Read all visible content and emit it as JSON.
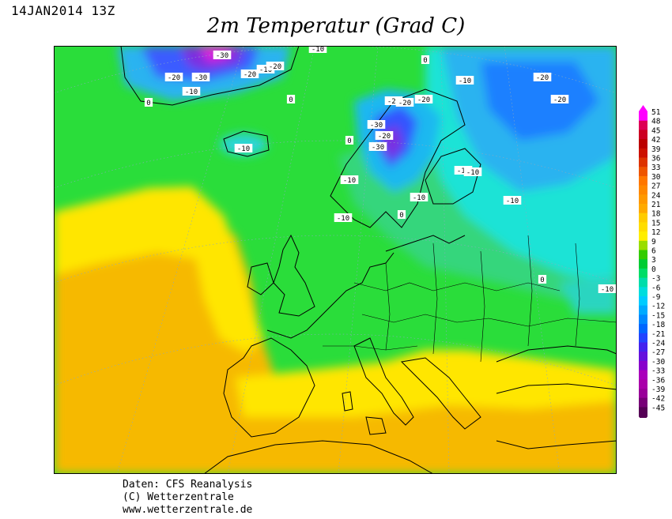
{
  "header": {
    "date": "14JAN2014 13Z",
    "title": "2m Temperatur (Grad C)"
  },
  "map": {
    "contour_labels": [
      "-30",
      "-20",
      "-30",
      "-20",
      "-10",
      "-20",
      "-10",
      "0",
      "0",
      "-10",
      "-20",
      "-10",
      "-20",
      "-10",
      "0",
      "-20",
      "-20",
      "-20",
      "-30",
      "-20",
      "-30",
      "0",
      "-10",
      "-10",
      "-10",
      "-10",
      "-10",
      "0",
      "-10",
      "0",
      "-10"
    ],
    "colors": {
      "warm_orange": "#f5b800",
      "yellow": "#ffe800",
      "green_light": "#55d834",
      "green": "#22dd33",
      "teal": "#20e0a0",
      "cyan": "#00e5e5",
      "blue": "#1e90ff",
      "purple": "#6a2fe0",
      "magenta": "#e020e0"
    }
  },
  "legend": {
    "labels": [
      "51",
      "48",
      "45",
      "42",
      "39",
      "36",
      "33",
      "30",
      "27",
      "24",
      "21",
      "18",
      "15",
      "12",
      "9",
      "6",
      "3",
      "0",
      "-3",
      "-6",
      "-9",
      "-12",
      "-15",
      "-18",
      "-21",
      "-24",
      "-27",
      "-30",
      "-33",
      "-36",
      "-39",
      "-42",
      "-45"
    ],
    "colors": [
      "#ff00ff",
      "#dd0055",
      "#cc0022",
      "#bb0000",
      "#cc1100",
      "#dd3300",
      "#ee5500",
      "#ff7700",
      "#ff8800",
      "#ff9900",
      "#ffaa00",
      "#ffcc00",
      "#ffdd00",
      "#ffee00",
      "#99dd00",
      "#33cc00",
      "#00cc33",
      "#00dd66",
      "#00ddaa",
      "#00dddd",
      "#00ccff",
      "#00aaff",
      "#0088ff",
      "#0066ff",
      "#2244ff",
      "#4422ee",
      "#6611dd",
      "#8800cc",
      "#aa00bb",
      "#aa00aa",
      "#990099",
      "#770077",
      "#550055"
    ]
  },
  "footer": {
    "line1": "Daten: CFS Reanalysis",
    "line2": "(C) Wetterzentrale",
    "line3": "www.wetterzentrale.de"
  }
}
